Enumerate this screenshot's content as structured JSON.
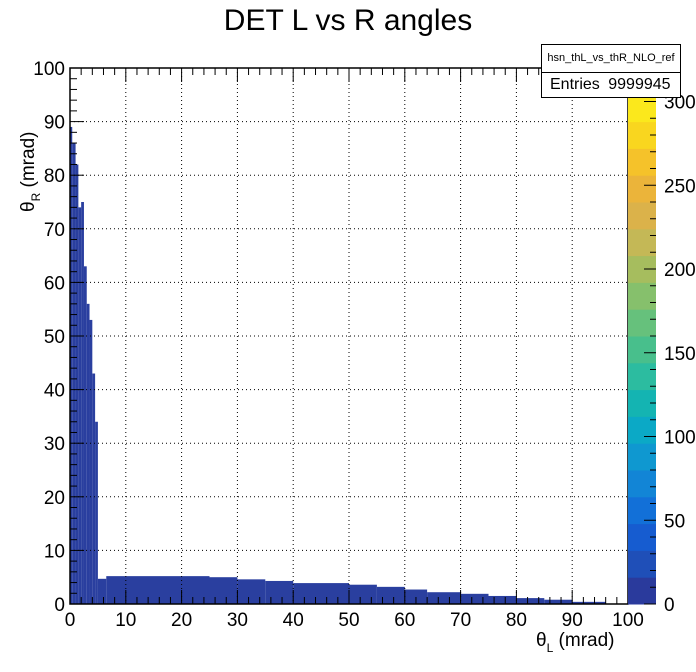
{
  "chart_data": {
    "type": "heatmap",
    "title": "DET L vs R angles",
    "xlabel_symbol": "θ",
    "xlabel_sub": "L",
    "xlabel_unit": " (mrad)",
    "ylabel_symbol": "θ",
    "ylabel_sub": "R",
    "ylabel_unit": " (mrad)",
    "xlim": [
      0,
      100
    ],
    "ylim": [
      0,
      100
    ],
    "grid": true,
    "x_ticks": [
      "0",
      "10",
      "20",
      "30",
      "40",
      "50",
      "60",
      "70",
      "80",
      "90",
      "100"
    ],
    "y_ticks": [
      "0",
      "10",
      "20",
      "30",
      "40",
      "50",
      "60",
      "70",
      "80",
      "90",
      "100"
    ],
    "stats": {
      "name": "hsn_thL_vs_thR_NLO_ref",
      "entries_label": "Entries",
      "entries_value": "9999945"
    },
    "colorbar": {
      "ticks": [
        "0",
        "50",
        "100",
        "150",
        "200",
        "250",
        "300"
      ],
      "top_label_partial": "0",
      "range": [
        0,
        320
      ],
      "palette": [
        "#2a3a9c",
        "#1f4fb8",
        "#165cd0",
        "#1270d8",
        "#1285d6",
        "#0f98d0",
        "#0ba9c6",
        "#14b4b2",
        "#2cbca0",
        "#48bf8c",
        "#66c17c",
        "#86c06c",
        "#a6bd5e",
        "#c4b856",
        "#dbb24a",
        "#ebb43a",
        "#f5c22a",
        "#f9d61f",
        "#fbe81c",
        "#fcf61b"
      ]
    },
    "region_color": "#2a3f9f",
    "regions": [
      {
        "x0": 0,
        "x1": 0.4,
        "y0": 0,
        "y1": 89
      },
      {
        "x0": 0.4,
        "x1": 1.0,
        "y0": 0,
        "y1": 86
      },
      {
        "x0": 1.0,
        "x1": 1.5,
        "y0": 0,
        "y1": 82
      },
      {
        "x0": 1.5,
        "x1": 2.0,
        "y0": 0,
        "y1": 74
      },
      {
        "x0": 2.0,
        "x1": 2.5,
        "y0": 0,
        "y1": 75
      },
      {
        "x0": 2.5,
        "x1": 3.0,
        "y0": 0,
        "y1": 63
      },
      {
        "x0": 3.0,
        "x1": 3.5,
        "y0": 0,
        "y1": 56
      },
      {
        "x0": 3.5,
        "x1": 4.0,
        "y0": 0,
        "y1": 53
      },
      {
        "x0": 4.0,
        "x1": 4.5,
        "y0": 0,
        "y1": 43
      },
      {
        "x0": 4.5,
        "x1": 5.0,
        "y0": 0,
        "y1": 34
      },
      {
        "x0": 5.0,
        "x1": 6.5,
        "y0": 0,
        "y1": 4.7
      },
      {
        "x0": 6.5,
        "x1": 25,
        "y0": 0,
        "y1": 5.2
      },
      {
        "x0": 25,
        "x1": 30,
        "y0": 0,
        "y1": 5.0
      },
      {
        "x0": 30,
        "x1": 35,
        "y0": 0,
        "y1": 4.6
      },
      {
        "x0": 35,
        "x1": 40,
        "y0": 0,
        "y1": 4.3
      },
      {
        "x0": 40,
        "x1": 50,
        "y0": 0,
        "y1": 3.9
      },
      {
        "x0": 50,
        "x1": 55,
        "y0": 0,
        "y1": 3.6
      },
      {
        "x0": 55,
        "x1": 60,
        "y0": 0,
        "y1": 3.2
      },
      {
        "x0": 60,
        "x1": 64,
        "y0": 0,
        "y1": 2.7
      },
      {
        "x0": 64,
        "x1": 70,
        "y0": 0,
        "y1": 2.2
      },
      {
        "x0": 70,
        "x1": 75,
        "y0": 0,
        "y1": 1.9
      },
      {
        "x0": 75,
        "x1": 80,
        "y0": 0,
        "y1": 1.5
      },
      {
        "x0": 80,
        "x1": 85,
        "y0": 0,
        "y1": 1.1
      },
      {
        "x0": 85,
        "x1": 90,
        "y0": 0,
        "y1": 0.8
      },
      {
        "x0": 90,
        "x1": 96,
        "y0": 0,
        "y1": 0.4
      }
    ]
  }
}
